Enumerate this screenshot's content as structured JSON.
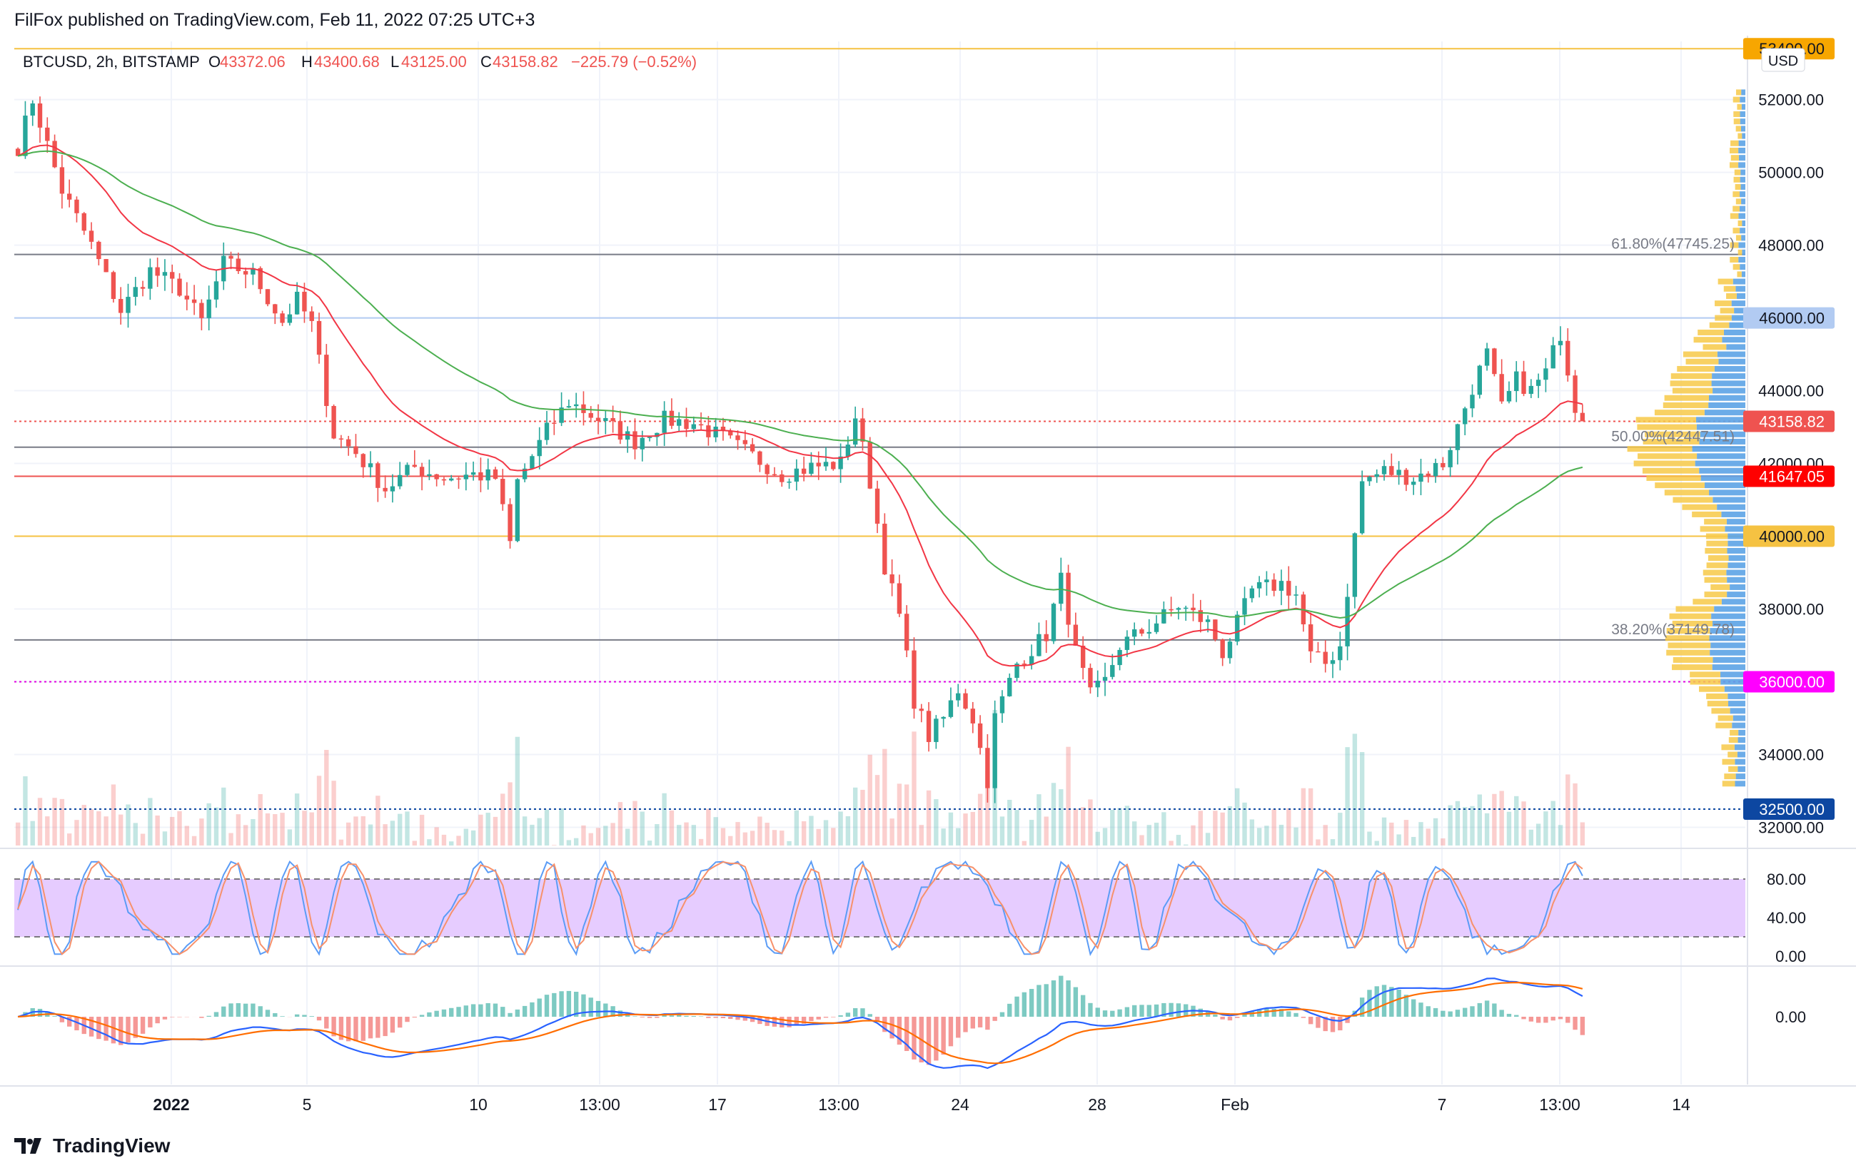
{
  "header": {
    "publisher": "FilFox published on TradingView.com, Feb 11, 2022 07:25 UTC+3"
  },
  "legend": {
    "symbol": "BTCUSD, 2h, BITSTAMP",
    "o_label": "O",
    "o_value": "43372.06",
    "h_label": "H",
    "h_value": "43400.68",
    "l_label": "L",
    "l_value": "43125.00",
    "c_label": "C",
    "c_value": "43158.82",
    "change": "−225.79 (−0.52%)"
  },
  "currency": "USD",
  "footer": {
    "brand": "TradingView"
  },
  "colors": {
    "up": "#26a69a",
    "down": "#ef5350",
    "ema_fast": "#f23645",
    "ema_slow": "#4caf50",
    "gold": "#f5c242",
    "stoch_fill": "#e6ccff",
    "macd_line": "#2962ff",
    "signal_line": "#ff6d00"
  },
  "chart_data": {
    "type": "candlestick",
    "y_axis": {
      "ticks": [
        "52000.00",
        "50000.00",
        "48000.00",
        "46000.00",
        "44000.00",
        "42000.00",
        "40000.00",
        "38000.00",
        "36000.00",
        "34000.00",
        "32000.00"
      ],
      "ylim": [
        31500,
        53600
      ]
    },
    "x_axis": {
      "ticks": [
        "2022",
        "5",
        "10",
        "13:00",
        "17",
        "13:00",
        "24",
        "28",
        "Feb",
        "7",
        "13:00",
        "14"
      ]
    },
    "price_labels": [
      {
        "value": 53400,
        "text": "53400.00",
        "color": "#f7a600"
      },
      {
        "value": 46000,
        "text": "46000.00",
        "color": "#b2cbf2"
      },
      {
        "value": 43158.82,
        "text": "43158.82",
        "color": "#ef5350"
      },
      {
        "value": 41647.05,
        "text": "41647.05",
        "color": "#ff0000"
      },
      {
        "value": 40000,
        "text": "40000.00",
        "color": "#f5c242"
      },
      {
        "value": 36000,
        "text": "36000.00",
        "color": "#ff00ff"
      },
      {
        "value": 32500,
        "text": "32500.00",
        "color": "#0d47a1"
      }
    ],
    "fib_levels": [
      {
        "value": 47745.25,
        "text": "61.80%(47745.25)"
      },
      {
        "value": 42447.51,
        "text": "50.00%(42447.51)"
      },
      {
        "value": 37149.78,
        "text": "38.20%(37149.78)"
      }
    ],
    "anchor_prices": [
      [
        0,
        50700
      ],
      [
        2,
        52000
      ],
      [
        6,
        49500
      ],
      [
        10,
        48000
      ],
      [
        14,
        46200
      ],
      [
        18,
        47300
      ],
      [
        22,
        46800
      ],
      [
        25,
        45900
      ],
      [
        28,
        47500
      ],
      [
        32,
        47200
      ],
      [
        36,
        45900
      ],
      [
        38,
        46500
      ],
      [
        40,
        45800
      ],
      [
        43,
        42800
      ],
      [
        46,
        42300
      ],
      [
        50,
        41300
      ],
      [
        54,
        41900
      ],
      [
        58,
        41600
      ],
      [
        62,
        41700
      ],
      [
        65,
        41600
      ],
      [
        67,
        39800
      ],
      [
        68,
        41500
      ],
      [
        72,
        42900
      ],
      [
        75,
        43700
      ],
      [
        80,
        43100
      ],
      [
        84,
        42600
      ],
      [
        88,
        43200
      ],
      [
        92,
        43100
      ],
      [
        96,
        42700
      ],
      [
        100,
        42200
      ],
      [
        104,
        41700
      ],
      [
        108,
        41900
      ],
      [
        112,
        42000
      ],
      [
        114,
        43300
      ],
      [
        116,
        41500
      ],
      [
        118,
        39200
      ],
      [
        120,
        37800
      ],
      [
        122,
        35500
      ],
      [
        124,
        34500
      ],
      [
        126,
        35000
      ],
      [
        128,
        35800
      ],
      [
        130,
        35000
      ],
      [
        132,
        33300
      ],
      [
        133,
        35000
      ],
      [
        136,
        36500
      ],
      [
        140,
        37300
      ],
      [
        142,
        38800
      ],
      [
        144,
        36800
      ],
      [
        146,
        35600
      ],
      [
        148,
        36000
      ],
      [
        150,
        37000
      ],
      [
        154,
        37500
      ],
      [
        158,
        38100
      ],
      [
        162,
        37600
      ],
      [
        164,
        36800
      ],
      [
        166,
        37600
      ],
      [
        168,
        38500
      ],
      [
        172,
        38700
      ],
      [
        174,
        38400
      ],
      [
        176,
        36700
      ],
      [
        178,
        36500
      ],
      [
        180,
        37000
      ],
      [
        183,
        41500
      ],
      [
        186,
        41800
      ],
      [
        190,
        41600
      ],
      [
        194,
        42000
      ],
      [
        196,
        43000
      ],
      [
        198,
        44100
      ],
      [
        200,
        45000
      ],
      [
        202,
        43500
      ],
      [
        204,
        44300
      ],
      [
        206,
        44000
      ],
      [
        208,
        44500
      ],
      [
        210,
        45600
      ],
      [
        212,
        43600
      ],
      [
        213,
        43158
      ]
    ],
    "candle_count": 214,
    "stoch_rsi": {
      "ticks": [
        "80.00",
        "40.00",
        "0.00"
      ],
      "band_upper": 80,
      "band_lower": 20
    },
    "macd": {
      "ticks": [
        "0.00"
      ]
    }
  }
}
